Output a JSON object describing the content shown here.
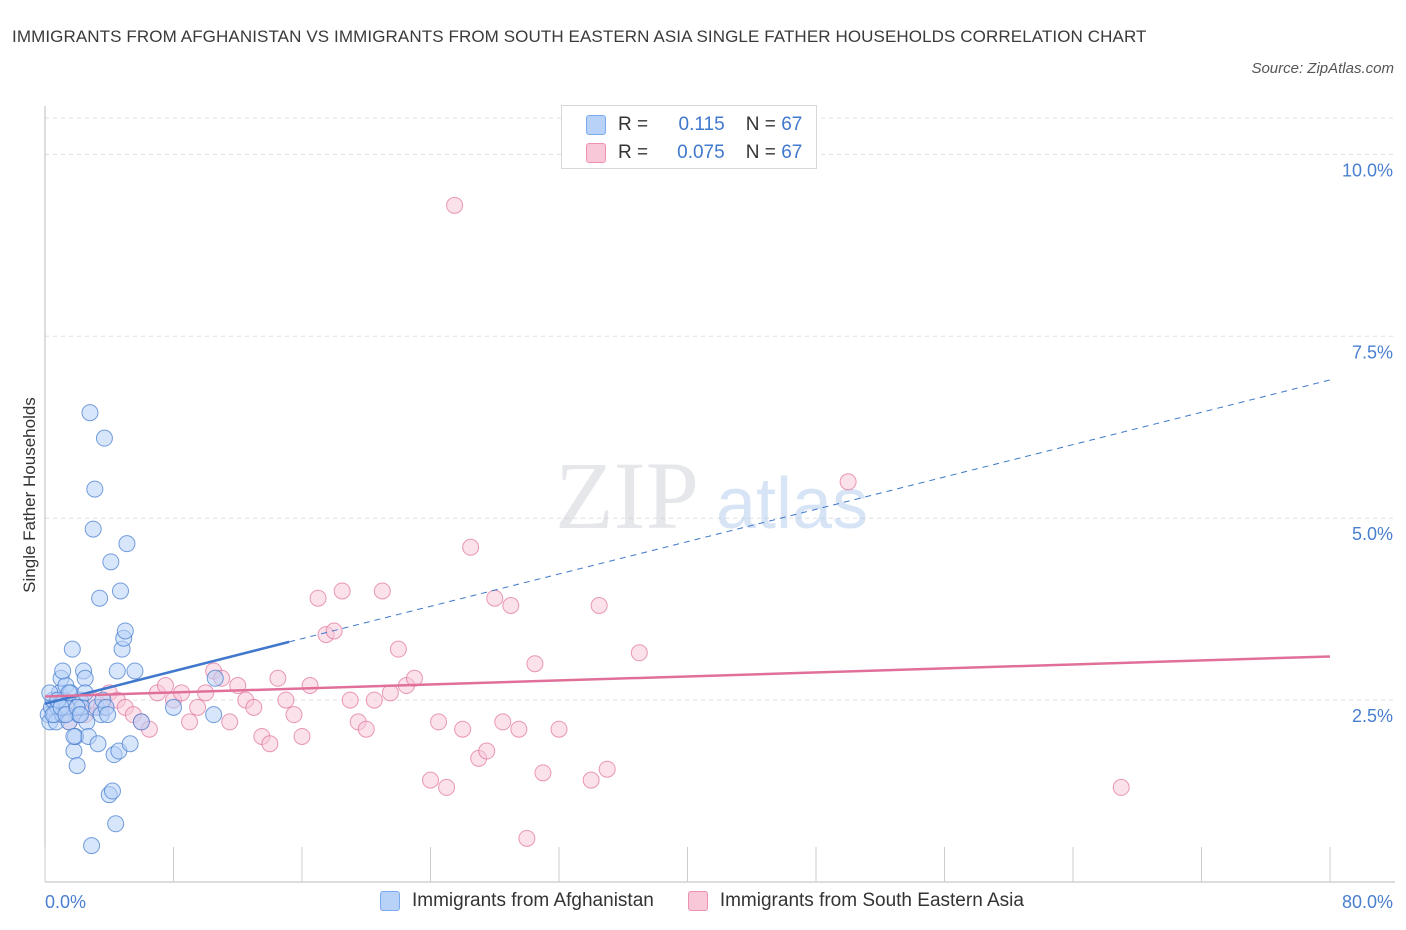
{
  "title": "IMMIGRANTS FROM AFGHANISTAN VS IMMIGRANTS FROM SOUTH EASTERN ASIA SINGLE FATHER HOUSEHOLDS CORRELATION CHART",
  "source": "Source: ZipAtlas.com",
  "watermark": {
    "zip": "ZIP",
    "atlas": "atlas"
  },
  "legend": {
    "r_label": "R =",
    "n_label": "N =",
    "rows": [
      {
        "r": "0.115",
        "n": "67",
        "color": "#7aaaf0",
        "fill": "#b8d2f7"
      },
      {
        "r": "0.075",
        "n": "67",
        "color": "#f090b0",
        "fill": "#f8c8d8"
      }
    ]
  },
  "bottom_legend": [
    "Immigrants from Afghanistan",
    "Immigrants from South Eastern Asia"
  ],
  "chart_data": {
    "type": "scatter",
    "title": "IMMIGRANTS FROM AFGHANISTAN VS IMMIGRANTS FROM SOUTH EASTERN ASIA SINGLE FATHER HOUSEHOLDS CORRELATION CHART",
    "xlabel": "",
    "ylabel": "Single Father Households",
    "xlim": [
      0,
      80
    ],
    "ylim": [
      0,
      10.5
    ],
    "x_tick_labels": [
      "0.0%",
      "80.0%"
    ],
    "y_ticks": [
      2.5,
      5.0,
      7.5,
      10.0
    ],
    "y_tick_labels": [
      "2.5%",
      "5.0%",
      "7.5%",
      "10.0%"
    ],
    "grid": true,
    "legend_position": "top-center",
    "series": [
      {
        "name": "Immigrants from Afghanistan",
        "color": "#3f78cc",
        "fill": "#b8d2f7",
        "trend": {
          "x0": 0,
          "y0": 2.45,
          "x1": 15.2,
          "y1": 3.3,
          "dash_to_x": 80,
          "dash_to_y": 6.9
        },
        "points": [
          [
            0.2,
            2.3
          ],
          [
            0.3,
            2.2
          ],
          [
            0.4,
            2.4
          ],
          [
            0.5,
            2.5
          ],
          [
            0.6,
            2.3
          ],
          [
            0.7,
            2.2
          ],
          [
            0.8,
            2.4
          ],
          [
            0.9,
            2.6
          ],
          [
            1.0,
            2.8
          ],
          [
            1.1,
            2.3
          ],
          [
            1.2,
            2.5
          ],
          [
            1.3,
            2.7
          ],
          [
            1.4,
            2.4
          ],
          [
            1.5,
            2.2
          ],
          [
            1.6,
            2.6
          ],
          [
            1.7,
            3.2
          ],
          [
            1.8,
            1.8
          ],
          [
            1.9,
            2.0
          ],
          [
            2.0,
            1.6
          ],
          [
            2.1,
            2.3
          ],
          [
            2.2,
            2.5
          ],
          [
            2.3,
            2.4
          ],
          [
            2.4,
            2.9
          ],
          [
            2.5,
            2.8
          ],
          [
            2.6,
            2.2
          ],
          [
            2.7,
            2.0
          ],
          [
            2.8,
            6.45
          ],
          [
            2.9,
            0.5
          ],
          [
            3.0,
            4.85
          ],
          [
            3.1,
            5.4
          ],
          [
            3.2,
            2.4
          ],
          [
            3.3,
            1.9
          ],
          [
            3.4,
            3.9
          ],
          [
            3.5,
            2.3
          ],
          [
            3.6,
            2.5
          ],
          [
            3.7,
            6.1
          ],
          [
            3.8,
            2.4
          ],
          [
            3.9,
            2.3
          ],
          [
            4.0,
            1.2
          ],
          [
            4.1,
            4.4
          ],
          [
            4.2,
            1.25
          ],
          [
            4.3,
            1.75
          ],
          [
            4.4,
            0.8
          ],
          [
            4.5,
            2.9
          ],
          [
            4.6,
            1.8
          ],
          [
            4.7,
            4.0
          ],
          [
            4.8,
            3.2
          ],
          [
            4.9,
            3.35
          ],
          [
            5.0,
            3.45
          ],
          [
            5.1,
            4.65
          ],
          [
            5.3,
            1.9
          ],
          [
            5.6,
            2.9
          ],
          [
            6.0,
            2.2
          ],
          [
            0.3,
            2.6
          ],
          [
            0.5,
            2.3
          ],
          [
            0.8,
            2.5
          ],
          [
            1.0,
            2.4
          ],
          [
            1.3,
            2.3
          ],
          [
            1.5,
            2.6
          ],
          [
            1.8,
            2.0
          ],
          [
            2.0,
            2.4
          ],
          [
            2.2,
            2.3
          ],
          [
            2.5,
            2.6
          ],
          [
            8.0,
            2.4
          ],
          [
            10.5,
            2.3
          ],
          [
            10.6,
            2.8
          ],
          [
            1.1,
            2.9
          ]
        ]
      },
      {
        "name": "Immigrants from South Eastern Asia",
        "color": "#e0709a",
        "fill": "#f8c8d8",
        "trend": {
          "x0": 0,
          "y0": 2.55,
          "x1": 80,
          "y1": 3.1
        },
        "points": [
          [
            1.0,
            2.3
          ],
          [
            1.5,
            2.2
          ],
          [
            2.0,
            2.4
          ],
          [
            2.5,
            2.3
          ],
          [
            3.0,
            2.5
          ],
          [
            3.5,
            2.4
          ],
          [
            4.0,
            2.6
          ],
          [
            4.5,
            2.5
          ],
          [
            5.0,
            2.4
          ],
          [
            5.5,
            2.3
          ],
          [
            6.0,
            2.2
          ],
          [
            6.5,
            2.1
          ],
          [
            7.0,
            2.6
          ],
          [
            7.5,
            2.7
          ],
          [
            8.0,
            2.5
          ],
          [
            8.5,
            2.6
          ],
          [
            9.0,
            2.2
          ],
          [
            9.5,
            2.4
          ],
          [
            10.0,
            2.6
          ],
          [
            10.5,
            2.9
          ],
          [
            11.0,
            2.8
          ],
          [
            11.5,
            2.2
          ],
          [
            12.0,
            2.7
          ],
          [
            12.5,
            2.5
          ],
          [
            13.0,
            2.4
          ],
          [
            13.5,
            2.0
          ],
          [
            14.0,
            1.9
          ],
          [
            14.5,
            2.8
          ],
          [
            15.0,
            2.5
          ],
          [
            15.5,
            2.3
          ],
          [
            16.0,
            2.0
          ],
          [
            16.5,
            2.7
          ],
          [
            17.0,
            3.9
          ],
          [
            17.5,
            3.4
          ],
          [
            18.0,
            3.45
          ],
          [
            18.5,
            4.0
          ],
          [
            19.0,
            2.5
          ],
          [
            19.5,
            2.2
          ],
          [
            20.0,
            2.1
          ],
          [
            20.5,
            2.5
          ],
          [
            21.0,
            4.0
          ],
          [
            21.5,
            2.6
          ],
          [
            22.0,
            3.2
          ],
          [
            22.5,
            2.7
          ],
          [
            23.0,
            2.8
          ],
          [
            24.0,
            1.4
          ],
          [
            24.5,
            2.2
          ],
          [
            25.0,
            1.3
          ],
          [
            25.5,
            9.3
          ],
          [
            26.0,
            2.1
          ],
          [
            26.5,
            4.6
          ],
          [
            27.0,
            1.7
          ],
          [
            27.5,
            1.8
          ],
          [
            28.0,
            3.9
          ],
          [
            28.5,
            2.2
          ],
          [
            29.0,
            3.8
          ],
          [
            29.5,
            2.1
          ],
          [
            30.0,
            0.6
          ],
          [
            30.5,
            3.0
          ],
          [
            31.0,
            1.5
          ],
          [
            32.0,
            2.1
          ],
          [
            34.0,
            1.4
          ],
          [
            34.5,
            3.8
          ],
          [
            35.0,
            1.55
          ],
          [
            37.0,
            3.15
          ],
          [
            50.0,
            5.5
          ],
          [
            67.0,
            1.3
          ]
        ]
      }
    ]
  }
}
